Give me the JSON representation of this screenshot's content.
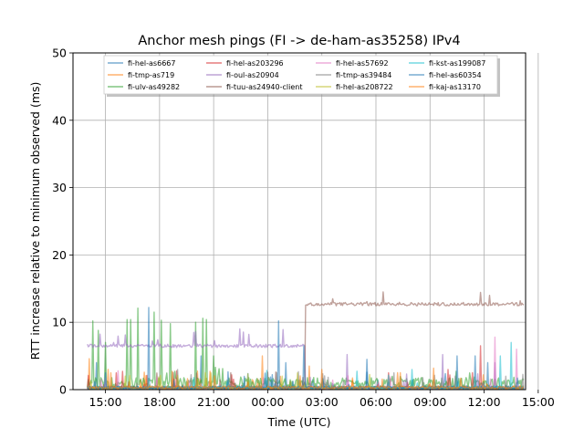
{
  "chart_data": {
    "type": "line",
    "title": "Anchor mesh pings (FI -> de-ham-as35258) IPv4",
    "xlabel": "Time (UTC)",
    "ylabel": "RTT increase relative to minimum observed (ms)",
    "ylim": [
      0,
      50
    ],
    "xlim_hours": [
      13.2,
      38.3
    ],
    "x_ticks": [
      {
        "h": 15,
        "label": "15:00"
      },
      {
        "h": 18,
        "label": "18:00"
      },
      {
        "h": 21,
        "label": "21:00"
      },
      {
        "h": 24,
        "label": "00:00"
      },
      {
        "h": 27,
        "label": "03:00"
      },
      {
        "h": 30,
        "label": "06:00"
      },
      {
        "h": 33,
        "label": "09:00"
      },
      {
        "h": 36,
        "label": "12:00"
      },
      {
        "h": 39,
        "label": "15:00"
      }
    ],
    "y_ticks": [
      {
        "v": 0,
        "label": "0"
      },
      {
        "v": 10,
        "label": "10"
      },
      {
        "v": 20,
        "label": "20"
      },
      {
        "v": 30,
        "label": "30"
      },
      {
        "v": 40,
        "label": "40"
      },
      {
        "v": 50,
        "label": "50"
      }
    ],
    "grid": true,
    "legend_position": "top-center",
    "series": [
      {
        "name": "fi-hel-as6667",
        "color": "#1f77b4",
        "base": 0.3,
        "level": [],
        "spikes": [
          [
            14.5,
            4.0
          ],
          [
            20.3,
            5.0
          ],
          [
            25.0,
            4.0
          ],
          [
            29.5,
            4.5
          ],
          [
            36.2,
            4.0
          ]
        ]
      },
      {
        "name": "fi-tmp-as719",
        "color": "#ff7f0e",
        "base": 0.3,
        "level": [],
        "spikes": [
          [
            14.1,
            4.6
          ],
          [
            23.7,
            5.0
          ],
          [
            26.3,
            3.5
          ]
        ]
      },
      {
        "name": "fi-ulv-as49282",
        "color": "#2ca02c",
        "base": 1.0,
        "level": [],
        "spikes": [
          [
            14.3,
            10.2
          ],
          [
            14.6,
            8.8
          ],
          [
            15.0,
            7.0
          ],
          [
            16.2,
            10.4
          ],
          [
            16.4,
            10.4
          ],
          [
            16.8,
            12.1
          ],
          [
            17.7,
            11.5
          ],
          [
            18.1,
            10.3
          ],
          [
            18.6,
            9.8
          ],
          [
            20.0,
            10.0
          ],
          [
            20.4,
            10.6
          ],
          [
            20.6,
            10.4
          ],
          [
            21.0,
            5.0
          ]
        ]
      },
      {
        "name": "fi-hel-as203296",
        "color": "#d62728",
        "base": 0.2,
        "level": [],
        "spikes": [
          [
            15.6,
            2.5
          ],
          [
            22.0,
            2.2
          ],
          [
            30.7,
            2.5
          ],
          [
            34.0,
            3.0
          ],
          [
            35.8,
            6.5
          ]
        ]
      },
      {
        "name": "fi-oul-as20904",
        "color": "#9467bd",
        "base": 0.2,
        "level": [
          [
            14.0,
            26.1,
            6.5
          ]
        ],
        "spikes": [
          [
            28.4,
            5.2
          ],
          [
            33.7,
            5.2
          ],
          [
            36.6,
            4.0
          ]
        ]
      },
      {
        "name": "fi-tuu-as24940-client",
        "color": "#8c564b",
        "base": 0.2,
        "level": [
          [
            26.1,
            38.2,
            12.7
          ]
        ],
        "spikes": [
          [
            27.6,
            13.5
          ],
          [
            30.4,
            14.5
          ],
          [
            36.3,
            14.0
          ],
          [
            38.0,
            13.2
          ]
        ]
      },
      {
        "name": "fi-hel-as57692",
        "color": "#e377c2",
        "base": 0.2,
        "level": [],
        "spikes": [
          [
            36.6,
            7.8
          ],
          [
            37.8,
            6.0
          ]
        ]
      },
      {
        "name": "fi-tmp-as39484",
        "color": "#7f7f7f",
        "base": 0.2,
        "level": [],
        "spikes": [
          [
            19.0,
            3.0
          ],
          [
            31.0,
            2.5
          ]
        ]
      },
      {
        "name": "fi-hel-as208722",
        "color": "#bcbd22",
        "base": 0.2,
        "level": [],
        "spikes": [
          [
            16.1,
            2.0
          ],
          [
            24.8,
            2.0
          ]
        ]
      },
      {
        "name": "fi-kst-as199087",
        "color": "#17becf",
        "base": 0.3,
        "level": [],
        "spikes": [
          [
            32.0,
            3.0
          ],
          [
            36.9,
            5.0
          ],
          [
            37.5,
            7.0
          ]
        ]
      },
      {
        "name": "fi-hel-as60354",
        "color": "#1f77b4",
        "base": 0.3,
        "level": [],
        "spikes": [
          [
            17.4,
            12.2
          ],
          [
            24.6,
            10.2
          ],
          [
            26.0,
            6.5
          ],
          [
            34.5,
            5.0
          ],
          [
            35.5,
            5.0
          ]
        ]
      },
      {
        "name": "fi-kaj-as13170",
        "color": "#ff7f0e",
        "base": 0.3,
        "level": [],
        "spikes": [
          [
            15.3,
            2.5
          ],
          [
            27.0,
            3.0
          ],
          [
            33.2,
            3.2
          ]
        ]
      }
    ]
  }
}
